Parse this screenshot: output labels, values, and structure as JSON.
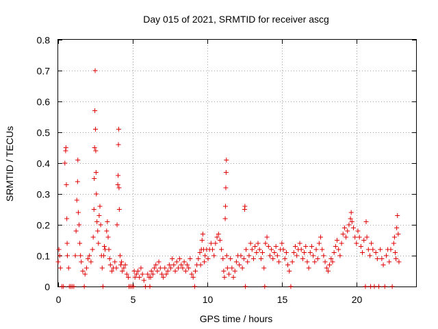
{
  "chart_data": {
    "type": "scatter",
    "title": "Day 015 of 2021, SRMTID for receiver ascg",
    "xlabel": "GPS time / hours",
    "ylabel": "SRMTID / TECUs",
    "xlim": [
      0,
      24
    ],
    "ylim": [
      0,
      0.8
    ],
    "xticks": [
      "0",
      "5",
      "10",
      "15",
      "20"
    ],
    "xtick_values": [
      0,
      5,
      10,
      15,
      20
    ],
    "yticks": [
      "0",
      "0.1",
      "0.2",
      "0.3",
      "0.4",
      "0.5",
      "0.6",
      "0.7",
      "0.8"
    ],
    "ytick_values": [
      0,
      0.1,
      0.2,
      0.3,
      0.4,
      0.5,
      0.6,
      0.7,
      0.8
    ],
    "grid": true,
    "marker": "+",
    "color": "#e00000",
    "series": [
      {
        "name": "SRMTID",
        "points": [
          [
            0.0,
            0.08
          ],
          [
            0.05,
            0.12
          ],
          [
            0.1,
            0.1
          ],
          [
            0.15,
            0.06
          ],
          [
            0.25,
            0.0
          ],
          [
            0.35,
            0.0
          ],
          [
            0.45,
            0.4
          ],
          [
            0.5,
            0.44
          ],
          [
            0.52,
            0.45
          ],
          [
            0.55,
            0.33
          ],
          [
            0.58,
            0.22
          ],
          [
            0.6,
            0.14
          ],
          [
            0.62,
            0.1
          ],
          [
            0.7,
            0.06
          ],
          [
            0.75,
            0.0
          ],
          [
            0.85,
            0.0
          ],
          [
            0.95,
            0.0
          ],
          [
            1.05,
            0.0
          ],
          [
            1.15,
            0.1
          ],
          [
            1.2,
            0.18
          ],
          [
            1.25,
            0.28
          ],
          [
            1.3,
            0.34
          ],
          [
            1.32,
            0.41
          ],
          [
            1.35,
            0.24
          ],
          [
            1.4,
            0.2
          ],
          [
            1.45,
            0.14
          ],
          [
            1.5,
            0.1
          ],
          [
            1.55,
            0.08
          ],
          [
            1.65,
            0.05
          ],
          [
            1.75,
            0.0
          ],
          [
            1.8,
            0.04
          ],
          [
            1.9,
            0.06
          ],
          [
            2.0,
            0.09
          ],
          [
            2.1,
            0.1
          ],
          [
            2.2,
            0.08
          ],
          [
            2.3,
            0.12
          ],
          [
            2.35,
            0.16
          ],
          [
            2.4,
            0.25
          ],
          [
            2.42,
            0.35
          ],
          [
            2.44,
            0.45
          ],
          [
            2.46,
            0.57
          ],
          [
            2.48,
            0.7
          ],
          [
            2.5,
            0.51
          ],
          [
            2.52,
            0.44
          ],
          [
            2.54,
            0.37
          ],
          [
            2.56,
            0.3
          ],
          [
            2.6,
            0.21
          ],
          [
            2.65,
            0.18
          ],
          [
            2.7,
            0.14
          ],
          [
            2.75,
            0.23
          ],
          [
            2.8,
            0.26
          ],
          [
            2.85,
            0.2
          ],
          [
            2.9,
            0.1
          ],
          [
            2.95,
            0.06
          ],
          [
            3.0,
            0.0
          ],
          [
            3.05,
            0.1
          ],
          [
            3.1,
            0.13
          ],
          [
            3.15,
            0.12
          ],
          [
            3.25,
            0.18
          ],
          [
            3.3,
            0.21
          ],
          [
            3.35,
            0.16
          ],
          [
            3.4,
            0.12
          ],
          [
            3.45,
            0.09
          ],
          [
            3.5,
            0.07
          ],
          [
            3.6,
            0.05
          ],
          [
            3.7,
            0.06
          ],
          [
            3.8,
            0.08
          ],
          [
            3.9,
            0.06
          ],
          [
            3.95,
            0.2
          ],
          [
            4.0,
            0.33
          ],
          [
            4.02,
            0.36
          ],
          [
            4.04,
            0.46
          ],
          [
            4.06,
            0.51
          ],
          [
            4.08,
            0.32
          ],
          [
            4.1,
            0.25
          ],
          [
            4.15,
            0.1
          ],
          [
            4.2,
            0.07
          ],
          [
            4.25,
            0.08
          ],
          [
            4.3,
            0.05
          ],
          [
            4.4,
            0.06
          ],
          [
            4.5,
            0.07
          ],
          [
            4.6,
            0.04
          ],
          [
            4.7,
            0.03
          ],
          [
            4.75,
            0.0
          ],
          [
            4.85,
            0.0
          ],
          [
            4.95,
            0.0
          ],
          [
            5.05,
            0.0
          ],
          [
            5.1,
            0.05
          ],
          [
            5.15,
            0.03
          ],
          [
            5.25,
            0.04
          ],
          [
            5.35,
            0.05
          ],
          [
            5.45,
            0.03
          ],
          [
            5.55,
            0.06
          ],
          [
            5.65,
            0.04
          ],
          [
            5.75,
            0.02
          ],
          [
            5.85,
            0.0
          ],
          [
            6.0,
            0.04
          ],
          [
            6.1,
            0.03
          ],
          [
            6.15,
            0.0
          ],
          [
            6.2,
            0.03
          ],
          [
            6.25,
            0.05
          ],
          [
            6.35,
            0.04
          ],
          [
            6.45,
            0.06
          ],
          [
            6.55,
            0.07
          ],
          [
            6.65,
            0.05
          ],
          [
            6.75,
            0.08
          ],
          [
            6.85,
            0.06
          ],
          [
            6.95,
            0.04
          ],
          [
            7.05,
            0.03
          ],
          [
            7.15,
            0.06
          ],
          [
            7.25,
            0.04
          ],
          [
            7.35,
            0.05
          ],
          [
            7.45,
            0.07
          ],
          [
            7.55,
            0.06
          ],
          [
            7.65,
            0.09
          ],
          [
            7.75,
            0.07
          ],
          [
            7.85,
            0.05
          ],
          [
            7.95,
            0.08
          ],
          [
            8.05,
            0.06
          ],
          [
            8.15,
            0.09
          ],
          [
            8.25,
            0.07
          ],
          [
            8.35,
            0.06
          ],
          [
            8.45,
            0.08
          ],
          [
            8.55,
            0.05
          ],
          [
            8.65,
            0.07
          ],
          [
            8.75,
            0.06
          ],
          [
            8.85,
            0.09
          ],
          [
            8.95,
            0.04
          ],
          [
            9.05,
            0.03
          ],
          [
            9.15,
            0.0
          ],
          [
            9.2,
            0.05
          ],
          [
            9.3,
            0.07
          ],
          [
            9.4,
            0.09
          ],
          [
            9.5,
            0.11
          ],
          [
            9.55,
            0.07
          ],
          [
            9.6,
            0.12
          ],
          [
            9.65,
            0.15
          ],
          [
            9.7,
            0.17
          ],
          [
            9.75,
            0.12
          ],
          [
            9.8,
            0.08
          ],
          [
            9.85,
            0.1
          ],
          [
            9.95,
            0.12
          ],
          [
            10.05,
            0.09
          ],
          [
            10.15,
            0.12
          ],
          [
            10.25,
            0.14
          ],
          [
            10.35,
            0.12
          ],
          [
            10.45,
            0.1
          ],
          [
            10.55,
            0.14
          ],
          [
            10.65,
            0.16
          ],
          [
            10.75,
            0.17
          ],
          [
            10.85,
            0.15
          ],
          [
            10.95,
            0.12
          ],
          [
            11.05,
            0.09
          ],
          [
            11.1,
            0.05
          ],
          [
            11.15,
            0.03
          ],
          [
            11.2,
            0.22
          ],
          [
            11.22,
            0.26
          ],
          [
            11.24,
            0.32
          ],
          [
            11.26,
            0.37
          ],
          [
            11.28,
            0.41
          ],
          [
            11.3,
            0.1
          ],
          [
            11.35,
            0.06
          ],
          [
            11.45,
            0.04
          ],
          [
            11.55,
            0.09
          ],
          [
            11.65,
            0.06
          ],
          [
            11.75,
            0.03
          ],
          [
            11.85,
            0.05
          ],
          [
            11.95,
            0.08
          ],
          [
            12.05,
            0.1
          ],
          [
            12.15,
            0.07
          ],
          [
            12.25,
            0.1
          ],
          [
            12.35,
            0.06
          ],
          [
            12.45,
            0.09
          ],
          [
            12.5,
            0.25
          ],
          [
            12.52,
            0.26
          ],
          [
            12.55,
            0.0
          ],
          [
            12.6,
            0.12
          ],
          [
            12.7,
            0.08
          ],
          [
            12.8,
            0.1
          ],
          [
            12.9,
            0.14
          ],
          [
            13.0,
            0.12
          ],
          [
            13.1,
            0.09
          ],
          [
            13.2,
            0.13
          ],
          [
            13.3,
            0.11
          ],
          [
            13.4,
            0.14
          ],
          [
            13.5,
            0.12
          ],
          [
            13.6,
            0.09
          ],
          [
            13.7,
            0.11
          ],
          [
            13.8,
            0.06
          ],
          [
            13.85,
            0.0
          ],
          [
            13.9,
            0.14
          ],
          [
            14.0,
            0.16
          ],
          [
            14.1,
            0.13
          ],
          [
            14.2,
            0.1
          ],
          [
            14.3,
            0.12
          ],
          [
            14.4,
            0.09
          ],
          [
            14.5,
            0.11
          ],
          [
            14.6,
            0.13
          ],
          [
            14.7,
            0.1
          ],
          [
            14.8,
            0.08
          ],
          [
            14.9,
            0.12
          ],
          [
            15.0,
            0.14
          ],
          [
            15.1,
            0.12
          ],
          [
            15.2,
            0.09
          ],
          [
            15.3,
            0.11
          ],
          [
            15.4,
            0.07
          ],
          [
            15.5,
            0.05
          ],
          [
            15.6,
            0.0
          ],
          [
            15.7,
            0.08
          ],
          [
            15.8,
            0.11
          ],
          [
            15.9,
            0.13
          ],
          [
            16.0,
            0.1
          ],
          [
            16.1,
            0.12
          ],
          [
            16.2,
            0.14
          ],
          [
            16.3,
            0.12
          ],
          [
            16.4,
            0.09
          ],
          [
            16.5,
            0.11
          ],
          [
            16.6,
            0.13
          ],
          [
            16.7,
            0.08
          ],
          [
            16.8,
            0.06
          ],
          [
            16.9,
            0.11
          ],
          [
            17.0,
            0.13
          ],
          [
            17.1,
            0.1
          ],
          [
            17.2,
            0.08
          ],
          [
            17.3,
            0.12
          ],
          [
            17.4,
            0.09
          ],
          [
            17.5,
            0.14
          ],
          [
            17.6,
            0.16
          ],
          [
            17.7,
            0.12
          ],
          [
            17.8,
            0.1
          ],
          [
            17.9,
            0.08
          ],
          [
            18.0,
            0.06
          ],
          [
            18.1,
            0.05
          ],
          [
            18.2,
            0.07
          ],
          [
            18.3,
            0.09
          ],
          [
            18.4,
            0.08
          ],
          [
            18.5,
            0.11
          ],
          [
            18.6,
            0.13
          ],
          [
            18.7,
            0.15
          ],
          [
            18.8,
            0.12
          ],
          [
            18.9,
            0.1
          ],
          [
            19.0,
            0.14
          ],
          [
            19.1,
            0.17
          ],
          [
            19.2,
            0.19
          ],
          [
            19.3,
            0.16
          ],
          [
            19.4,
            0.18
          ],
          [
            19.5,
            0.2
          ],
          [
            19.6,
            0.22
          ],
          [
            19.65,
            0.24
          ],
          [
            19.7,
            0.21
          ],
          [
            19.8,
            0.19
          ],
          [
            19.9,
            0.16
          ],
          [
            20.0,
            0.14
          ],
          [
            20.1,
            0.18
          ],
          [
            20.2,
            0.16
          ],
          [
            20.3,
            0.13
          ],
          [
            20.4,
            0.11
          ],
          [
            20.5,
            0.15
          ],
          [
            20.6,
            0.0
          ],
          [
            20.65,
            0.21
          ],
          [
            20.7,
            0.16
          ],
          [
            20.8,
            0.12
          ],
          [
            20.9,
            0.1
          ],
          [
            20.95,
            0.0
          ],
          [
            21.0,
            0.14
          ],
          [
            21.1,
            0.12
          ],
          [
            21.2,
            0.0
          ],
          [
            21.3,
            0.11
          ],
          [
            21.4,
            0.09
          ],
          [
            21.5,
            0.0
          ],
          [
            21.6,
            0.12
          ],
          [
            21.7,
            0.09
          ],
          [
            21.8,
            0.07
          ],
          [
            21.9,
            0.0
          ],
          [
            22.0,
            0.1
          ],
          [
            22.1,
            0.12
          ],
          [
            22.2,
            0.08
          ],
          [
            22.3,
            0.12
          ],
          [
            22.4,
            0.0
          ],
          [
            22.5,
            0.14
          ],
          [
            22.55,
            0.16
          ],
          [
            22.6,
            0.11
          ],
          [
            22.65,
            0.09
          ],
          [
            22.7,
            0.19
          ],
          [
            22.75,
            0.23
          ],
          [
            22.8,
            0.17
          ],
          [
            22.85,
            0.08
          ]
        ]
      }
    ]
  }
}
